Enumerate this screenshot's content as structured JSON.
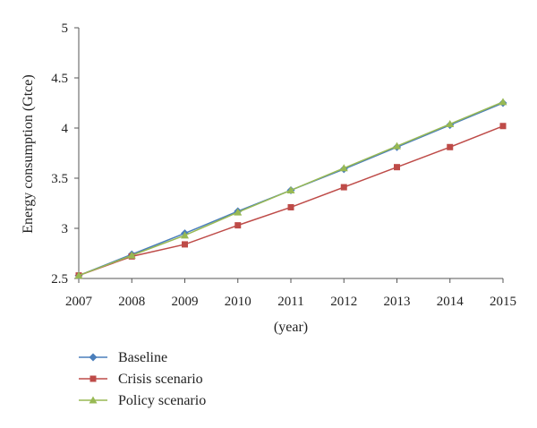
{
  "chart_data": {
    "type": "line",
    "title": "",
    "xlabel": "(year)",
    "ylabel": "Energy consumption (Gtce)",
    "categories": [
      "2007",
      "2008",
      "2009",
      "2010",
      "2011",
      "2012",
      "2013",
      "2014",
      "2015"
    ],
    "yticks": [
      "2.5",
      "3",
      "3.5",
      "4",
      "4.5",
      "5"
    ],
    "ylim": [
      2.5,
      5
    ],
    "grid": false,
    "legend_position": "bottom-left",
    "series": [
      {
        "name": "Baseline",
        "color": "#4a7ebb",
        "marker": "diamond",
        "values": [
          2.53,
          2.74,
          2.95,
          3.17,
          3.38,
          3.59,
          3.81,
          4.03,
          4.25
        ]
      },
      {
        "name": "Crisis scenario",
        "color": "#be4b48",
        "marker": "square",
        "values": [
          2.53,
          2.72,
          2.84,
          3.03,
          3.21,
          3.41,
          3.61,
          3.81,
          4.02
        ]
      },
      {
        "name": "Policy scenario",
        "color": "#98b954",
        "marker": "triangle",
        "values": [
          2.53,
          2.73,
          2.93,
          3.16,
          3.38,
          3.6,
          3.82,
          4.04,
          4.26
        ]
      }
    ]
  }
}
